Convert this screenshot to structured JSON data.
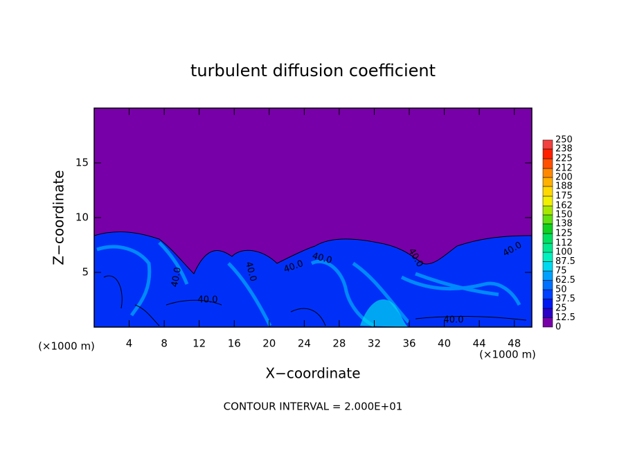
{
  "chart_data": {
    "type": "contour",
    "title": "turbulent diffusion coefficient",
    "xlabel": "X−coordinate",
    "ylabel": "Z−coordinate",
    "x_unit": "(×1000 m)",
    "footer": "CONTOUR INTERVAL = 2.000E+01",
    "xlim": [
      0,
      50
    ],
    "xticks": [
      4,
      8,
      12,
      16,
      20,
      24,
      28,
      32,
      36,
      40,
      44,
      48
    ],
    "ylim": [
      0,
      20
    ],
    "yticks": [
      5,
      10,
      15
    ],
    "contour_labels": [
      "40.0",
      "40.0",
      "40.0",
      "40.0",
      "40.0",
      "40.0",
      "40.0",
      "40.0"
    ],
    "levels": [
      0,
      12.5,
      25,
      37.5,
      50,
      62.5,
      75,
      87.5,
      100,
      112,
      125,
      138,
      150,
      162,
      175,
      188,
      200,
      212,
      225,
      238,
      250
    ],
    "colors": [
      "#7800a8",
      "#2a00c8",
      "#0018f0",
      "#0040ff",
      "#0070ff",
      "#00a0ff",
      "#00d8f0",
      "#00f0c0",
      "#00e890",
      "#00e060",
      "#10d020",
      "#60e010",
      "#a8e800",
      "#f0f000",
      "#ffd800",
      "#ffb000",
      "#ff8800",
      "#ff5000",
      "#ff2000",
      "#f04040",
      "#f08080"
    ]
  }
}
